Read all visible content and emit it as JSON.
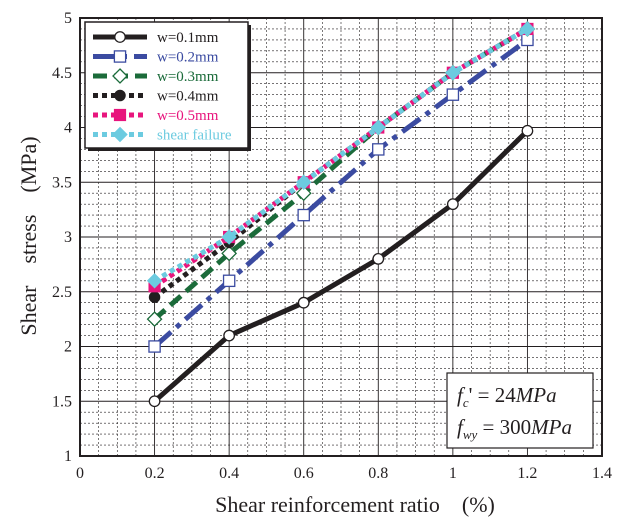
{
  "chart_data": {
    "type": "line",
    "xlabel": "Shear reinforcement ratio　(%)",
    "ylabel": "Shear　stress　(MPa)",
    "xlim": [
      0,
      1.4
    ],
    "ylim": [
      1,
      5
    ],
    "x_ticks": [
      "0",
      "0.2",
      "0.4",
      "0.6",
      "0.8",
      "1",
      "1.2",
      "1.4"
    ],
    "y_ticks": [
      "1",
      "1.5",
      "2",
      "2.5",
      "3",
      "3.5",
      "4",
      "4.5",
      "5"
    ],
    "grid": true,
    "legend_position": "top-left",
    "series": [
      {
        "name": "w=0.1mm",
        "color": "#231f20",
        "text_color": "#231f20",
        "marker": "circle-open",
        "dash": "solid",
        "x": [
          0.2,
          0.4,
          0.6,
          0.8,
          1.0,
          1.2
        ],
        "y": [
          1.5,
          2.1,
          2.4,
          2.8,
          3.3,
          3.97
        ]
      },
      {
        "name": "w=0.2mm",
        "color": "#3b4ba1",
        "text_color": "#3b4ba1",
        "marker": "square-open",
        "dash": "dashdot",
        "x": [
          0.2,
          0.4,
          0.6,
          0.8,
          1.0,
          1.2
        ],
        "y": [
          2.0,
          2.6,
          3.2,
          3.8,
          4.3,
          4.8
        ]
      },
      {
        "name": "w=0.3mm",
        "color": "#1b6b3a",
        "text_color": "#1b6b3a",
        "marker": "diamond-open",
        "dash": "dash",
        "x": [
          0.2,
          0.4,
          0.6,
          0.8,
          1.0,
          1.2
        ],
        "y": [
          2.25,
          2.85,
          3.4,
          4.0,
          4.5,
          4.9
        ]
      },
      {
        "name": "w=0.4mm",
        "color": "#231f20",
        "text_color": "#231f20",
        "marker": "circle-filled",
        "dash": "dot",
        "x": [
          0.2,
          0.4,
          0.6,
          0.8,
          1.0,
          1.2
        ],
        "y": [
          2.45,
          2.95,
          3.5,
          4.0,
          4.5,
          4.9
        ]
      },
      {
        "name": "w=0.5mm",
        "color": "#e8157d",
        "text_color": "#e8157d",
        "marker": "square-filled",
        "dash": "dot",
        "x": [
          0.2,
          0.4,
          0.6,
          0.8,
          1.0,
          1.2
        ],
        "y": [
          2.55,
          3.0,
          3.5,
          4.0,
          4.5,
          4.9
        ]
      },
      {
        "name": "shear failure",
        "color": "#6ccbe0",
        "text_color": "#6ccbe0",
        "marker": "diamond-filled",
        "dash": "dot",
        "x": [
          0.2,
          0.4,
          0.6,
          0.8,
          1.0,
          1.2
        ],
        "y": [
          2.6,
          3.0,
          3.5,
          4.0,
          4.5,
          4.9
        ]
      }
    ],
    "annotation": {
      "line1": {
        "var": "f",
        "sub": "c",
        "rest": "' = 24",
        "unit": "MPa"
      },
      "line2": {
        "var": "f",
        "sub": "wy",
        "rest": " = 300",
        "unit": "MPa"
      }
    }
  }
}
